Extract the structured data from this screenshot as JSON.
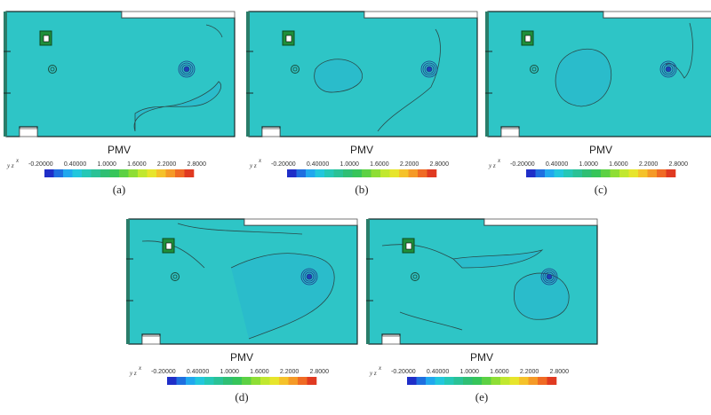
{
  "colorbar": {
    "label": "PMV",
    "ticks": [
      "-0.20000",
      "0.40000",
      "1.0000",
      "1.6000",
      "2.2000",
      "2.8000"
    ],
    "colors": [
      "#1f2ec8",
      "#1f6fe0",
      "#21a8ee",
      "#22c7dd",
      "#25c8b6",
      "#2ac296",
      "#2fbf74",
      "#36c55a",
      "#5cd144",
      "#8ede35",
      "#c1e82f",
      "#e7e52c",
      "#f5c22a",
      "#f59a27",
      "#f06b24",
      "#e03a21"
    ]
  },
  "axes_glyph": {
    "x": "x",
    "y": "y",
    "z": "z"
  },
  "panels": [
    {
      "id": "a",
      "caption": "(a)"
    },
    {
      "id": "b",
      "caption": "(b)"
    },
    {
      "id": "c",
      "caption": "(c)"
    },
    {
      "id": "d",
      "caption": "(d)"
    },
    {
      "id": "e",
      "caption": "(e)"
    }
  ],
  "colors": {
    "field": "#2ec5c6",
    "contour": "#2a4a4a",
    "frame": "#1a2a2a"
  }
}
